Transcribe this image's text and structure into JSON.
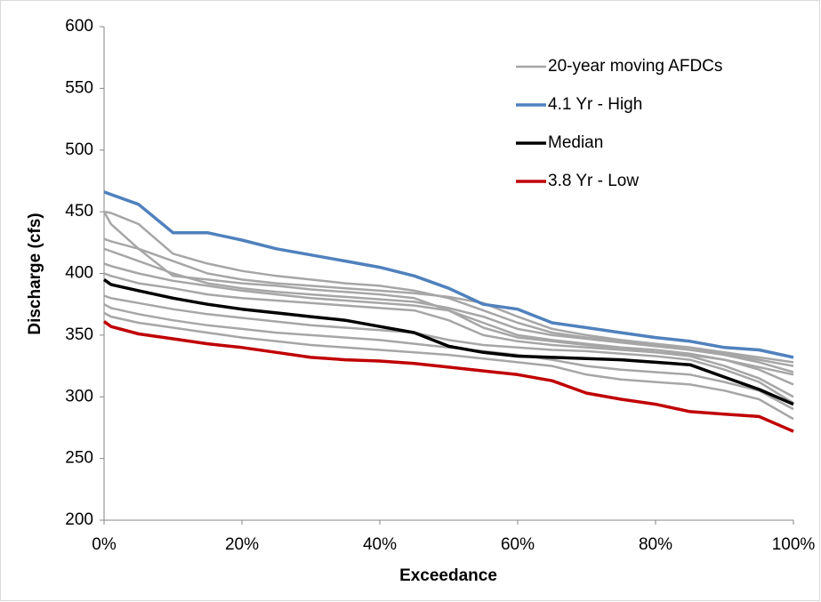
{
  "chart_data": {
    "type": "line",
    "x_label": "Exceedance",
    "y_label": "Discharge (cfs)",
    "x": [
      0,
      1,
      5,
      10,
      15,
      20,
      25,
      30,
      35,
      40,
      45,
      50,
      55,
      60,
      65,
      70,
      75,
      80,
      85,
      90,
      95,
      100
    ],
    "xlim": [
      0,
      100
    ],
    "xticks": [
      {
        "value": 0,
        "label": "0%"
      },
      {
        "value": 20,
        "label": "20%"
      },
      {
        "value": 40,
        "label": "40%"
      },
      {
        "value": 60,
        "label": "60%"
      },
      {
        "value": 80,
        "label": "80%"
      },
      {
        "value": 100,
        "label": "100%"
      }
    ],
    "ylim": [
      200,
      600
    ],
    "yticks": [
      200,
      250,
      300,
      350,
      400,
      450,
      500,
      550,
      600
    ],
    "legend": "upper right",
    "series": [
      {
        "name": "20-year moving AFDCs",
        "color": "#a6a6a6",
        "lines": [
          {
            "values": [
              450,
              449,
              440,
              416,
              408,
              402,
              398,
              395,
              392,
              390,
              386,
              380,
              370,
              360,
              352,
              348,
              345,
              342,
              340,
              335,
              330,
              325
            ]
          },
          {
            "values": [
              428,
              426,
              420,
              410,
              400,
              395,
              392,
              390,
              388,
              386,
              384,
              381,
              376,
              365,
              355,
              350,
              346,
              343,
              340,
              336,
              332,
              328
            ]
          },
          {
            "values": [
              420,
              418,
              410,
              400,
              392,
              388,
              385,
              383,
              381,
              379,
              377,
              372,
              365,
              355,
              350,
              347,
              344,
              341,
              338,
              334,
              328,
              320
            ]
          },
          {
            "values": [
              408,
              406,
              400,
              394,
              390,
              386,
              383,
              380,
              378,
              376,
              374,
              370,
              360,
              350,
              346,
              343,
              340,
              338,
              335,
              330,
              322,
              310
            ]
          },
          {
            "values": [
              400,
              398,
              392,
              388,
              383,
              380,
              378,
              376,
              374,
              372,
              370,
              362,
              350,
              345,
              342,
              340,
              338,
              336,
              333,
              325,
              315,
              300
            ]
          },
          {
            "values": [
              382,
              380,
              376,
              371,
              367,
              364,
              361,
              358,
              356,
              354,
              352,
              346,
              342,
              340,
              338,
              337,
              335,
              333,
              330,
              322,
              312,
              295
            ]
          },
          {
            "values": [
              375,
              372,
              367,
              362,
              358,
              355,
              352,
              350,
              348,
              346,
              343,
              340,
              337,
              334,
              330,
              325,
              322,
              320,
              318,
              312,
              305,
              290
            ]
          },
          {
            "values": [
              368,
              365,
              360,
              356,
              352,
              348,
              345,
              342,
              340,
              338,
              336,
              334,
              331,
              328,
              325,
              318,
              314,
              312,
              310,
              305,
              298,
              282
            ]
          },
          {
            "values": [
              450,
              440,
              420,
              398,
              395,
              392,
              390,
              387,
              385,
              383,
              380,
              370,
              356,
              348,
              345,
              342,
              339,
              336,
              334,
              330,
              324,
              318
            ]
          }
        ]
      },
      {
        "name": "4.1 Yr - High",
        "color": "#4f81bd",
        "values": [
          466,
          464,
          456,
          433,
          433,
          427,
          420,
          415,
          410,
          405,
          398,
          388,
          375,
          371,
          360,
          356,
          352,
          348,
          345,
          340,
          338,
          332
        ]
      },
      {
        "name": "Median",
        "color": "#000000",
        "values": [
          395,
          391,
          386,
          380,
          375,
          371,
          368,
          365,
          362,
          357,
          352,
          341,
          336,
          333,
          332,
          331,
          330,
          328,
          326,
          316,
          306,
          294
        ]
      },
      {
        "name": "3.8 Yr - Low",
        "color": "#c00000",
        "values": [
          361,
          357,
          351,
          347,
          343,
          340,
          336,
          332,
          330,
          329,
          327,
          324,
          321,
          318,
          313,
          303,
          298,
          294,
          288,
          286,
          284,
          272
        ]
      }
    ]
  }
}
